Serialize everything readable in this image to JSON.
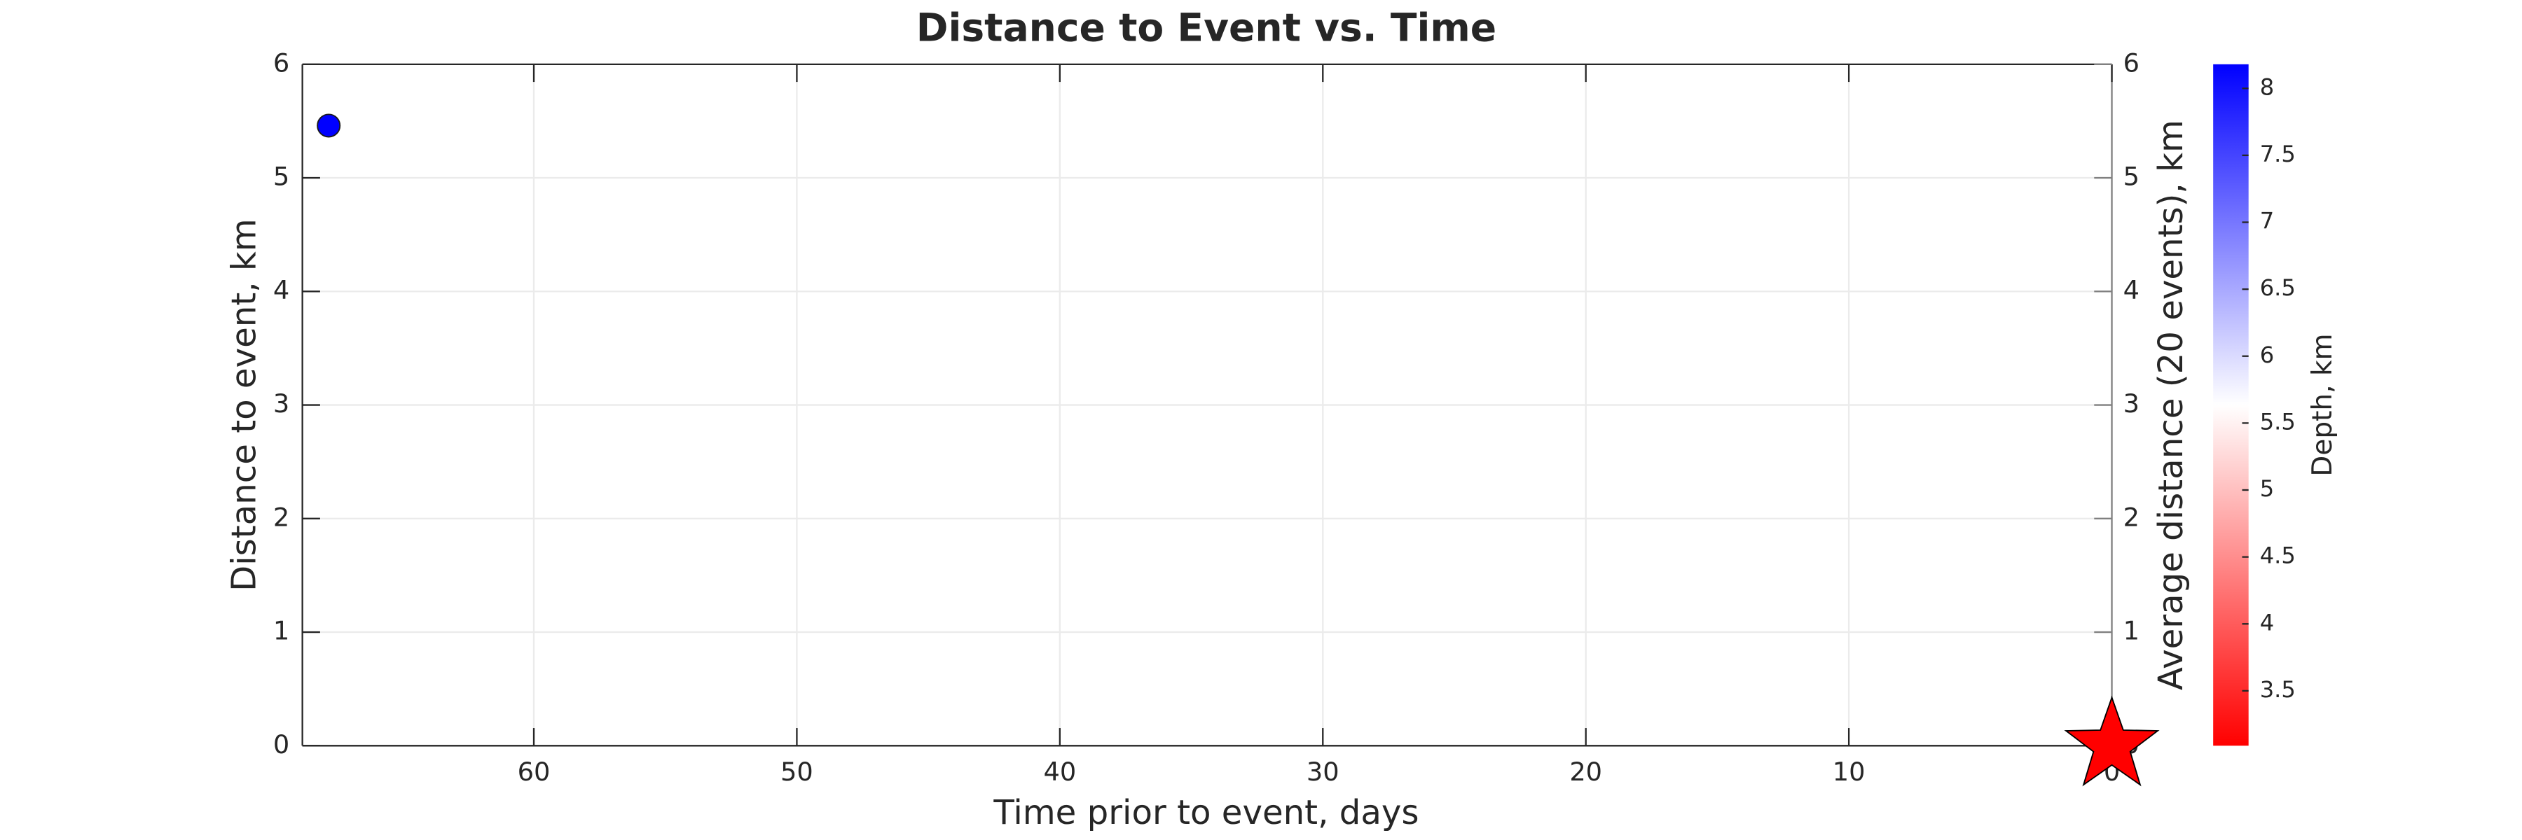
{
  "chart_data": {
    "type": "scatter",
    "title": "Distance to Event vs. Time",
    "x_label": "Time prior to event, days",
    "y_label": "Distance to event, km",
    "y2_label": "Average distance (20 events), km",
    "colorbar_label": "Depth, km",
    "xlim": [
      0,
      68.8
    ],
    "x_reversed": true,
    "xticks": [
      0,
      10,
      20,
      30,
      40,
      50,
      60
    ],
    "ylim": [
      0,
      6
    ],
    "yticks": [
      0,
      1,
      2,
      3,
      4,
      5,
      6
    ],
    "y2lim": [
      0,
      6
    ],
    "y2ticks": [
      0,
      1,
      2,
      3,
      4,
      5,
      6
    ],
    "y2_color": "#808080",
    "grid": true,
    "series": [
      {
        "x": [
          67.8
        ],
        "values": [
          5.46
        ],
        "depth": [
          8.18
        ]
      }
    ],
    "event": {
      "x": 0,
      "y": 0,
      "color": "#ff0000"
    },
    "clim": [
      3.09,
      8.18
    ],
    "cticks": [
      3.5,
      4,
      4.5,
      5,
      5.5,
      6,
      6.5,
      7,
      7.5,
      8
    ],
    "colormap": [
      "#ff0000",
      "#ffffff",
      "#0000ff"
    ]
  }
}
